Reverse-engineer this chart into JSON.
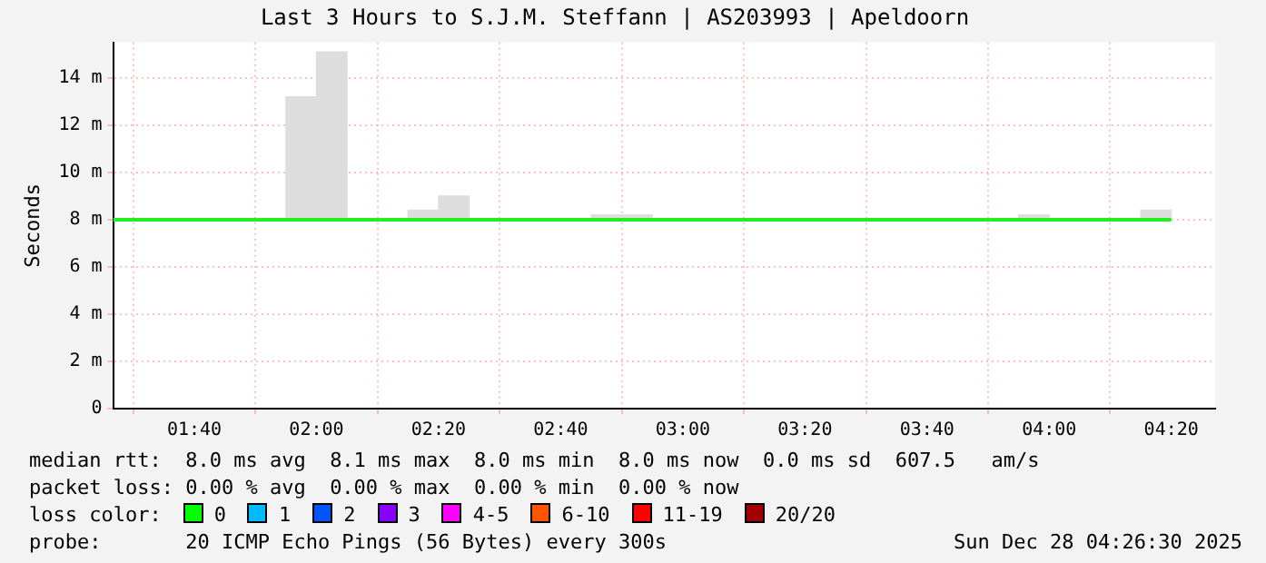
{
  "chart_data": {
    "type": "bar",
    "title": "Last 3 Hours to S.J.M. Steffann | AS203993 | Apeldoorn",
    "ylabel": "Seconds",
    "xlim": [
      1.445,
      4.453
    ],
    "xticks": [
      {
        "value": 1.6667,
        "label": "01:40"
      },
      {
        "value": 2,
        "label": "02:00"
      },
      {
        "value": 2.3333,
        "label": "02:20"
      },
      {
        "value": 2.6667,
        "label": "02:40"
      },
      {
        "value": 3,
        "label": "03:00"
      },
      {
        "value": 3.3333,
        "label": "03:20"
      },
      {
        "value": 3.6667,
        "label": "03:40"
      },
      {
        "value": 4,
        "label": "04:00"
      },
      {
        "value": 4.3333,
        "label": "04:20"
      }
    ],
    "ylim": [
      0,
      15.5
    ],
    "yticks": [
      0,
      {
        "value": 2,
        "label": "2 m"
      },
      {
        "value": 4,
        "label": "4 m"
      },
      {
        "value": 6,
        "label": "6 m"
      },
      {
        "value": 8,
        "label": "8 m"
      },
      {
        "value": 10,
        "label": "10 m"
      },
      {
        "value": 12,
        "label": "12 m"
      },
      {
        "value": 14,
        "label": "14 m"
      }
    ],
    "series": [
      {
        "color": "#dddddd",
        "x": [
          1.9583,
          2.0417,
          2.2917,
          2.375,
          2.7917,
          2.875,
          3.9583,
          4.2917
        ],
        "base": [
          8,
          8,
          8,
          8,
          8,
          8,
          8,
          8
        ],
        "values": [
          5.2,
          7.1,
          0.4,
          1,
          0.2,
          0.2,
          0.2,
          0.4
        ]
      },
      {
        "type": "line",
        "color": "#22ee22",
        "x": [
          1.445,
          4.3333
        ],
        "values": [
          8,
          8
        ]
      }
    ],
    "grid": true,
    "legend": false,
    "annotations": [
      "median rtt:  8.0 ms avg  8.1 ms max  8.0 ms min  8.0 ms now  0.0 ms sd  607.5   am/s",
      "packet loss: 0.00 % avg  0.00 % max  0.00 % min  0.00 % now",
      "loss color:",
      "0",
      "1",
      "2",
      "3",
      "4-5",
      "6-10",
      "11-19",
      "20/20",
      "probe:       20 ICMP Echo Pings (56 Bytes) every 300s",
      "Sun Dec 28 04:26:30 2025"
    ]
  }
}
